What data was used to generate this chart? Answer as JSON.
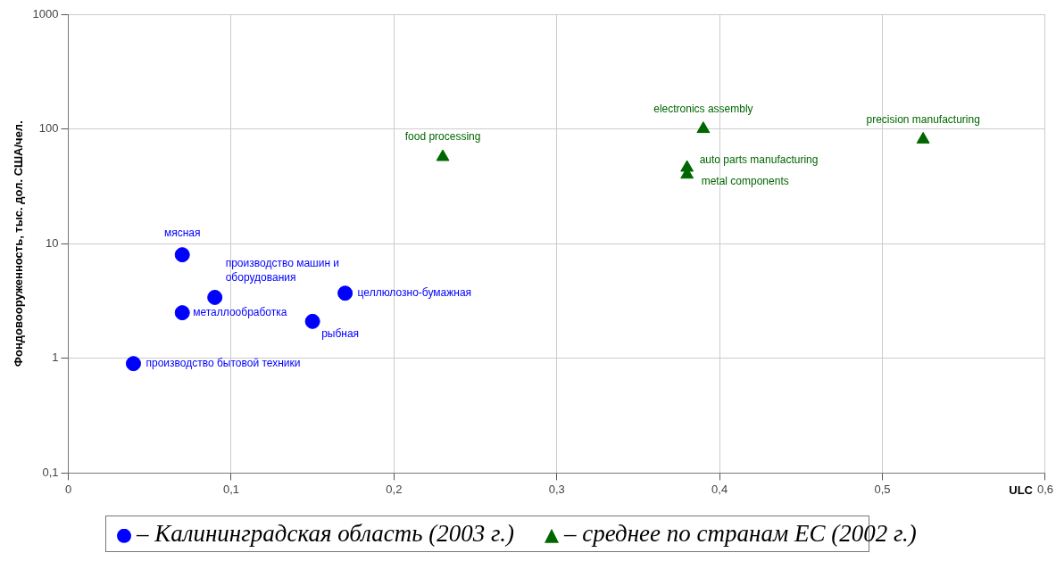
{
  "chart_data": {
    "type": "scatter",
    "xlabel": "ULC",
    "ylabel": "Фондовооруженность, тыс. дол. США/чел.",
    "log": "y",
    "grid": true,
    "legend": "bottom",
    "xlim": [
      0,
      0.6
    ],
    "xticks": [
      0,
      {
        "value": 0.1,
        "label": "0,1"
      },
      {
        "value": 0.2,
        "label": "0,2"
      },
      {
        "value": 0.3,
        "label": "0,3"
      },
      {
        "value": 0.4,
        "label": "0,4"
      },
      {
        "value": 0.5,
        "label": "0,5"
      },
      {
        "value": 0.6,
        "label": "0,6"
      }
    ],
    "ylim": [
      0.1,
      1000
    ],
    "yticks": [
      {
        "value": 0.1,
        "label": "0,1"
      },
      1,
      10,
      100,
      1000
    ],
    "series": [
      {
        "name": "– Калининградская область (2003 г.)",
        "color": "#0000ff",
        "marker": "circle",
        "x": [
          0.07,
          0.09,
          0.07,
          0.15,
          0.17,
          0.04
        ],
        "values": [
          8,
          3.4,
          2.5,
          2.1,
          3.7,
          0.9
        ]
      },
      {
        "name": "– среднее по странам ЕС (2002 г.)",
        "color": "#006600",
        "marker": "triangle",
        "x": [
          0.23,
          0.39,
          0.38,
          0.38,
          0.525
        ],
        "values": [
          57,
          100,
          46,
          40,
          81
        ]
      }
    ],
    "annotations": [
      {
        "text": "мясная",
        "x": 0.07,
        "y": 8
      },
      {
        "text": "производство машин и оборудования",
        "x": 0.09,
        "y": 3.4
      },
      {
        "text": "металлообработка",
        "x": 0.07,
        "y": 2.5
      },
      {
        "text": "рыбная",
        "x": 0.15,
        "y": 2.1
      },
      {
        "text": "целлюлозно-бумажная",
        "x": 0.17,
        "y": 3.7
      },
      {
        "text": "производство бытовой техники",
        "x": 0.04,
        "y": 0.9
      },
      {
        "text": "food processing",
        "x": 0.23,
        "y": 57
      },
      {
        "text": "electronics assembly",
        "x": 0.39,
        "y": 100
      },
      {
        "text": "auto parts manufacturing",
        "x": 0.38,
        "y": 46
      },
      {
        "text": "metal components",
        "x": 0.38,
        "y": 40
      },
      {
        "text": "precision manufacturing",
        "x": 0.525,
        "y": 81
      }
    ]
  }
}
